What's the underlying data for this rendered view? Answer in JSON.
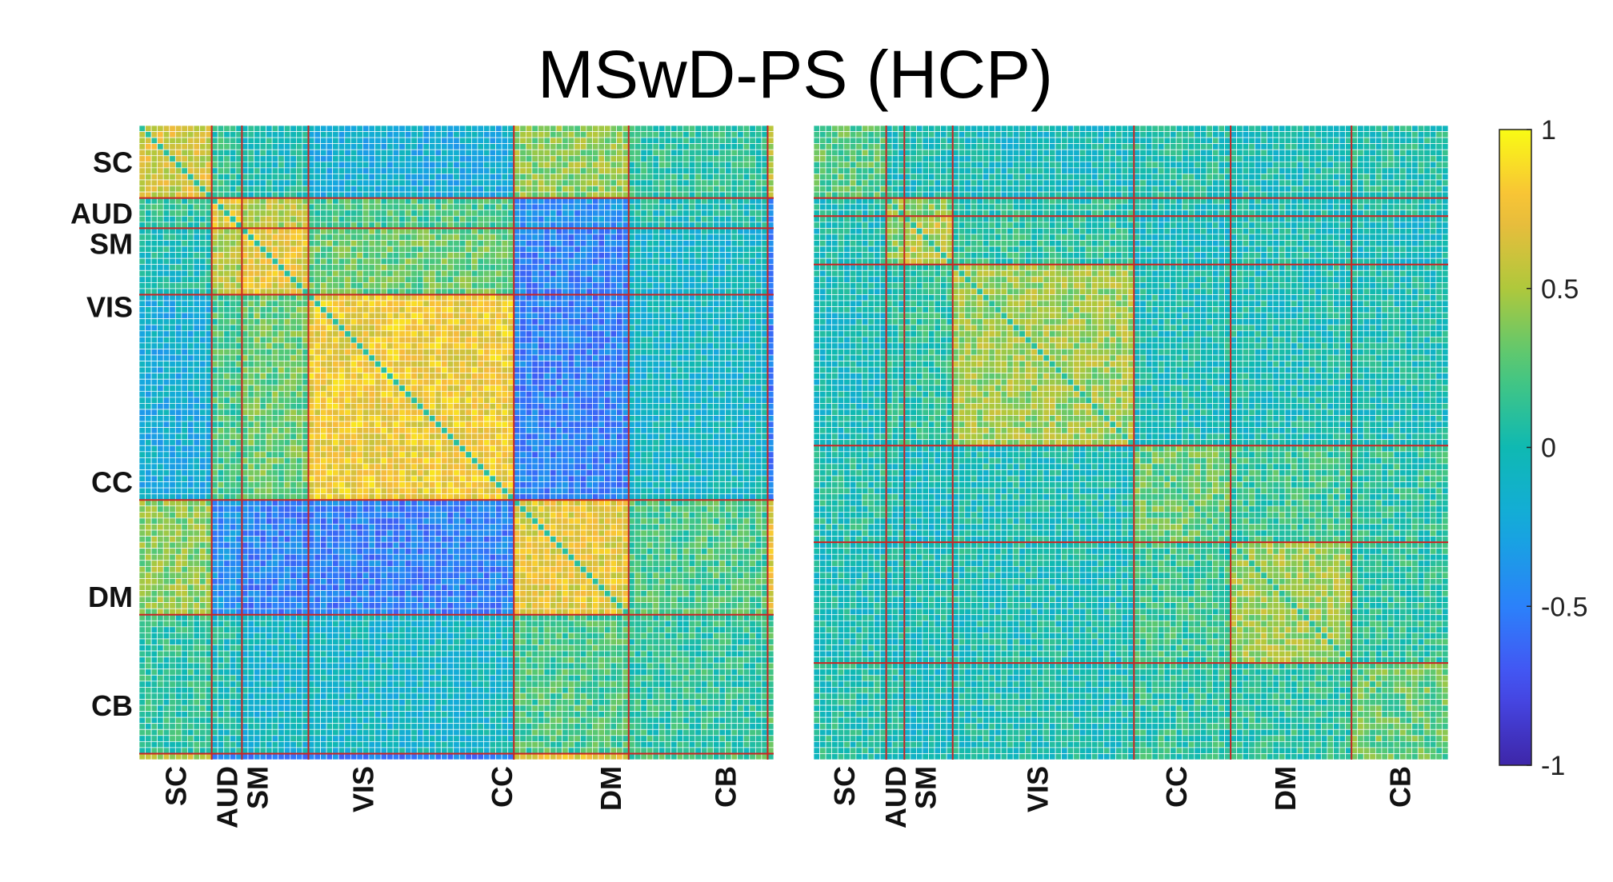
{
  "title": "MSwD-PS (HCP)",
  "chart_data": [
    {
      "type": "heatmap",
      "matrix_size": 105,
      "network_boundaries": [
        12,
        17,
        28,
        62,
        81,
        104
      ],
      "y_labels": [
        {
          "label": "SC",
          "index": 6
        },
        {
          "label": "AUD",
          "index": 14.5
        },
        {
          "label": "SM",
          "index": 19.5
        },
        {
          "label": "VIS",
          "index": 30
        },
        {
          "label": "CC",
          "index": 59
        },
        {
          "label": "DM",
          "index": 78
        },
        {
          "label": "CB",
          "index": 96
        }
      ],
      "x_labels": [
        {
          "label": "SC",
          "index": 6
        },
        {
          "label": "AUD",
          "index": 14.5
        },
        {
          "label": "SM",
          "index": 19.5
        },
        {
          "label": "VIS",
          "index": 37
        },
        {
          "label": "CC",
          "index": 60
        },
        {
          "label": "DM",
          "index": 78
        },
        {
          "label": "CB",
          "index": 97
        }
      ],
      "block_pattern": [
        [
          0.6,
          0.1,
          0.0,
          -0.2,
          0.4,
          0.1,
          0.5
        ],
        [
          0.1,
          0.7,
          0.5,
          0.2,
          -0.4,
          0.0,
          -0.4
        ],
        [
          0.0,
          0.5,
          0.7,
          0.3,
          -0.5,
          -0.1,
          -0.5
        ],
        [
          -0.2,
          0.2,
          0.3,
          0.75,
          -0.5,
          -0.1,
          -0.5
        ],
        [
          0.4,
          -0.4,
          -0.5,
          -0.5,
          0.7,
          0.2,
          0.7
        ],
        [
          0.1,
          0.0,
          -0.1,
          -0.1,
          0.2,
          0.1,
          0.2
        ],
        [
          0.5,
          -0.4,
          -0.5,
          -0.5,
          0.7,
          0.2,
          0.7
        ]
      ],
      "value_range": [
        -1,
        1
      ]
    },
    {
      "type": "heatmap",
      "matrix_size": 105,
      "network_boundaries": [
        12,
        15,
        23,
        53,
        69,
        89
      ],
      "x_labels": [
        {
          "label": "SC",
          "index": 5
        },
        {
          "label": "AUD",
          "index": 13.5
        },
        {
          "label": "SM",
          "index": 18.5
        },
        {
          "label": "VIS",
          "index": 37
        },
        {
          "label": "CC",
          "index": 60
        },
        {
          "label": "DM",
          "index": 78
        },
        {
          "label": "CB",
          "index": 97
        }
      ],
      "block_pattern": [
        [
          0.25,
          0.0,
          0.0,
          -0.05,
          0.05,
          0.0,
          0.05
        ],
        [
          0.0,
          0.45,
          0.35,
          0.05,
          0.0,
          0.0,
          0.0
        ],
        [
          0.0,
          0.35,
          0.55,
          0.1,
          -0.05,
          0.0,
          -0.05
        ],
        [
          -0.05,
          0.05,
          0.1,
          0.45,
          0.0,
          0.0,
          0.0
        ],
        [
          0.05,
          0.0,
          -0.05,
          0.0,
          0.3,
          0.15,
          0.1
        ],
        [
          0.0,
          0.0,
          0.0,
          0.0,
          0.15,
          0.45,
          0.1
        ],
        [
          0.05,
          0.0,
          -0.05,
          0.0,
          0.1,
          0.1,
          0.3
        ]
      ],
      "value_range": [
        -1,
        1
      ]
    }
  ],
  "colorbar": {
    "ticks": [
      {
        "value": 1,
        "label": "1"
      },
      {
        "value": 0.5,
        "label": "0.5"
      },
      {
        "value": 0,
        "label": "0"
      },
      {
        "value": -0.5,
        "label": "-0.5"
      },
      {
        "value": -1,
        "label": "-1"
      }
    ],
    "colormap": "parula"
  },
  "colors": {
    "grid_line": "#cc2222",
    "cell_border": "#ffffff"
  }
}
